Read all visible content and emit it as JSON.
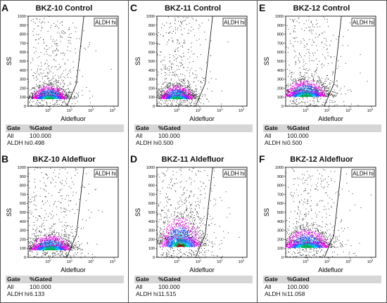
{
  "chart_data": [
    {
      "type": "scatter",
      "panel": "A",
      "title": "BKZ-10 Control",
      "xlabel": "Aldefluor",
      "ylabel": "SS",
      "gate_label": "ALDH hi",
      "yticks": [
        "0",
        "100",
        "200",
        "300",
        "400",
        "500",
        "600",
        "700",
        "800",
        "900",
        "1000"
      ],
      "xticks": [
        "10^0",
        "10^1",
        "10^2",
        "10^3"
      ],
      "table": {
        "headers": [
          "Gate",
          "%Gated"
        ],
        "rows": [
          [
            "All",
            "100.000"
          ],
          [
            "ALDH hi",
            "0.498"
          ]
        ]
      },
      "density": {
        "center_x": 0.0,
        "center_y": 85,
        "spread_x": 0.42,
        "spread_y": 55
      },
      "xlim_log10": [
        -1,
        3.2
      ],
      "ylim": [
        0,
        1000
      ]
    },
    {
      "type": "scatter",
      "panel": "B",
      "title": "BKZ-10 Aldefluor",
      "xlabel": "Aldefluor",
      "ylabel": "SS",
      "gate_label": "ALDH hi",
      "yticks": [
        "0",
        "100",
        "200",
        "300",
        "400",
        "500",
        "600",
        "700",
        "800",
        "900",
        "1000"
      ],
      "xticks": [
        "10^0",
        "10^1",
        "10^2",
        "10^3"
      ],
      "table": {
        "headers": [
          "Gate",
          "%Gated"
        ],
        "rows": [
          [
            "All",
            "100.000"
          ],
          [
            "ALDH hi",
            "6.133"
          ]
        ]
      },
      "density": {
        "center_x": 0.05,
        "center_y": 85,
        "spread_x": 0.5,
        "spread_y": 60
      },
      "xlim_log10": [
        -1,
        3.2
      ],
      "ylim": [
        0,
        1000
      ]
    },
    {
      "type": "scatter",
      "panel": "C",
      "title": "BKZ-11 Control",
      "xlabel": "Aldefluor",
      "ylabel": "SS",
      "gate_label": "ALDH hi",
      "yticks": [
        "0",
        "100",
        "200",
        "300",
        "400",
        "500",
        "600",
        "700",
        "800",
        "900",
        "1000"
      ],
      "xticks": [
        "10^0",
        "10^1",
        "10^2",
        "10^3"
      ],
      "table": {
        "headers": [
          "Gate",
          "%Gated"
        ],
        "rows": [
          [
            "All",
            "100.000"
          ],
          [
            "ALDH hi",
            "0.500"
          ]
        ]
      },
      "density": {
        "center_x": -0.05,
        "center_y": 85,
        "spread_x": 0.4,
        "spread_y": 55
      },
      "xlim_log10": [
        -1,
        3.2
      ],
      "ylim": [
        0,
        1000
      ]
    },
    {
      "type": "scatter",
      "panel": "D",
      "title": "BKZ-11 Aldefluor",
      "xlabel": "Aldefluor",
      "ylabel": "SS",
      "gate_label": "ALDH hi",
      "yticks": [
        "0",
        "100",
        "200",
        "300",
        "400",
        "500",
        "600",
        "700",
        "800",
        "900",
        "1000"
      ],
      "xticks": [
        "10^0",
        "10^1",
        "10^2",
        "10^3"
      ],
      "table": {
        "headers": [
          "Gate",
          "%Gated"
        ],
        "rows": [
          [
            "All",
            "100.000"
          ],
          [
            "ALDH hi",
            "11.515"
          ]
        ]
      },
      "density": {
        "center_x": 0.1,
        "center_y": 120,
        "spread_x": 0.5,
        "spread_y": 120
      },
      "xlim_log10": [
        -1,
        3.2
      ],
      "ylim": [
        0,
        1000
      ]
    },
    {
      "type": "scatter",
      "panel": "E",
      "title": "BKZ-12 Control",
      "xlabel": "Aldefluor",
      "ylabel": "SS",
      "gate_label": "ALDH hi",
      "yticks": [
        "0",
        "100",
        "200",
        "300",
        "400",
        "500",
        "600",
        "700",
        "800",
        "900",
        "1000"
      ],
      "xticks": [
        "10^0",
        "10^1",
        "10^2",
        "10^3"
      ],
      "table": {
        "headers": [
          "Gate",
          "%Gated"
        ],
        "rows": [
          [
            "All",
            "100.000"
          ],
          [
            "ALDH hi",
            "0.500"
          ]
        ]
      },
      "density": {
        "center_x": -0.05,
        "center_y": 110,
        "spread_x": 0.5,
        "spread_y": 70
      },
      "xlim_log10": [
        -1,
        3.2
      ],
      "ylim": [
        0,
        1000
      ]
    },
    {
      "type": "scatter",
      "panel": "F",
      "title": "BKZ-12 Aldefluor",
      "xlabel": "Aldefluor",
      "ylabel": "SS",
      "gate_label": "ALDH hi",
      "yticks": [
        "0",
        "100",
        "200",
        "300",
        "400",
        "500",
        "600",
        "700",
        "800",
        "900",
        "1000"
      ],
      "xticks": [
        "10^0",
        "10^1",
        "10^2",
        "10^3"
      ],
      "table": {
        "headers": [
          "Gate",
          "%Gated"
        ],
        "rows": [
          [
            "All",
            "100.000"
          ],
          [
            "ALDH hi",
            "11.058"
          ]
        ]
      },
      "density": {
        "center_x": 0.0,
        "center_y": 110,
        "spread_x": 0.55,
        "spread_y": 75
      },
      "xlim_log10": [
        -1,
        3.2
      ],
      "ylim": [
        0,
        1000
      ]
    }
  ]
}
